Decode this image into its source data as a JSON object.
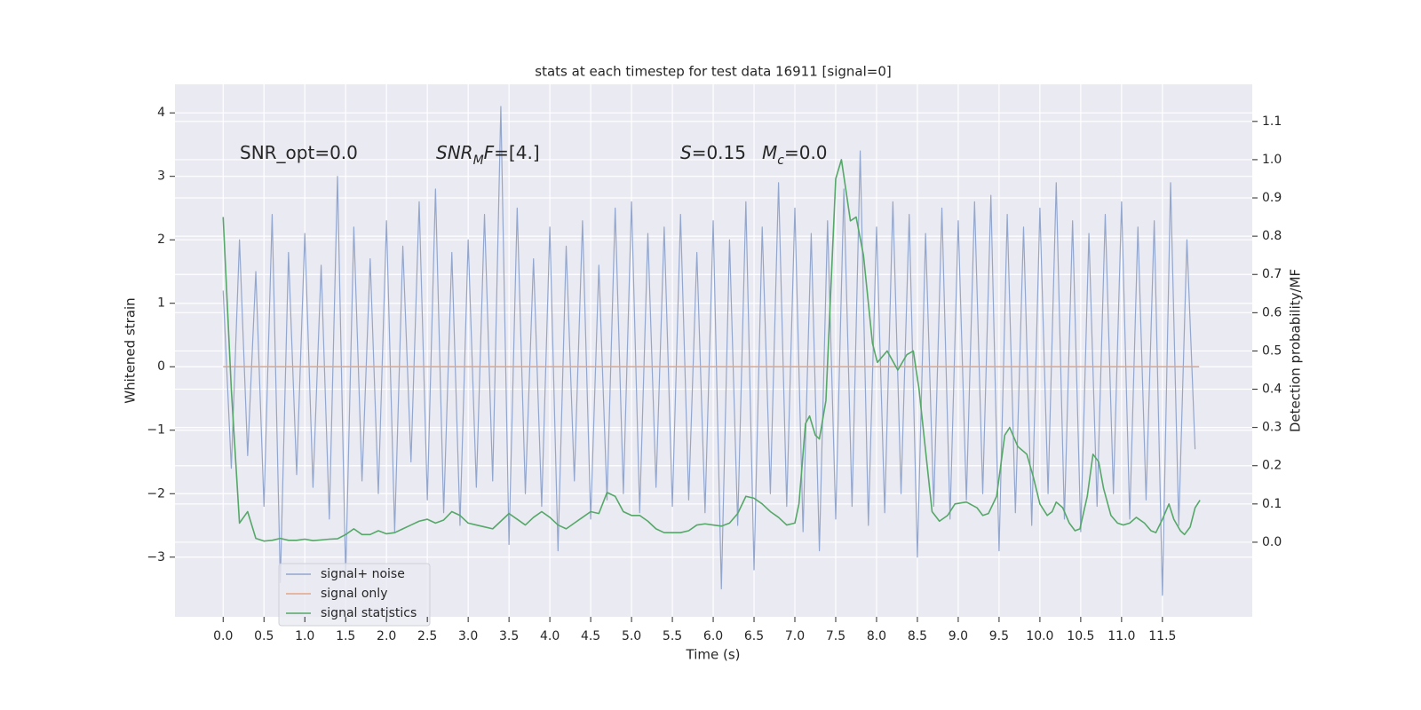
{
  "chart_data": {
    "type": "line",
    "title": "stats at each timestep for test data 16911 [signal=0]",
    "xlabel": "Time (s)",
    "ylabel": "Whitened strain",
    "y2label": "Detection probability/MF",
    "xlim": [
      -0.59,
      12.6
    ],
    "ylim": [
      -3.94,
      4.45
    ],
    "y2lim": [
      -0.195,
      1.197
    ],
    "xticks": [
      {
        "value": 0,
        "label": "0.0"
      },
      0.5,
      {
        "value": 1,
        "label": "1.0"
      },
      1.5,
      {
        "value": 2,
        "label": "2.0"
      },
      2.5,
      {
        "value": 3,
        "label": "3.0"
      },
      3.5,
      {
        "value": 4,
        "label": "4.0"
      },
      4.5,
      {
        "value": 5,
        "label": "5.0"
      },
      5.5,
      {
        "value": 6,
        "label": "6.0"
      },
      6.5,
      {
        "value": 7,
        "label": "7.0"
      },
      7.5,
      {
        "value": 8,
        "label": "8.0"
      },
      8.5,
      {
        "value": 9,
        "label": "9.0"
      },
      9.5,
      {
        "value": 10,
        "label": "10.0"
      },
      10.5,
      {
        "value": 11,
        "label": "11.0"
      },
      11.5
    ],
    "yticks": [
      {
        "value": -3,
        "label": "−3"
      },
      {
        "value": -2,
        "label": "−2"
      },
      {
        "value": -1,
        "label": "−1"
      },
      0,
      1,
      2,
      3,
      4
    ],
    "y2ticks": [
      {
        "value": 0,
        "label": "0.0"
      },
      0.1,
      0.2,
      0.3,
      0.4,
      0.5,
      0.6,
      0.7,
      0.8,
      0.9,
      {
        "value": 1,
        "label": "1.0"
      },
      1.1
    ],
    "grid": true,
    "legend": "lower left",
    "annotations": [
      {
        "segments": [
          {
            "text": "SNR_opt=0.0"
          }
        ]
      },
      {
        "segments": [
          {
            "text": "SNR",
            "italic": true
          },
          {
            "text": "M",
            "italic": true,
            "sub": true
          },
          {
            "text": "F",
            "italic": true
          },
          {
            "text": "=[4.]"
          }
        ]
      },
      {
        "segments": [
          {
            "text": "S",
            "italic": true
          },
          {
            "text": "=0.15"
          }
        ]
      },
      {
        "segments": [
          {
            "text": "M",
            "italic": true
          },
          {
            "text": "c",
            "italic": true,
            "sub": true
          },
          {
            "text": "=0.0"
          }
        ]
      }
    ],
    "series": [
      {
        "name": "signal+ noise",
        "color": "#93a6cd",
        "axis": "y",
        "x": [
          0.0,
          0.1,
          0.2,
          0.3,
          0.4,
          0.5,
          0.6,
          0.7,
          0.8,
          0.9,
          1.0,
          1.1,
          1.2,
          1.3,
          1.4,
          1.5,
          1.6,
          1.7,
          1.8,
          1.9,
          2.0,
          2.1,
          2.2,
          2.3,
          2.4,
          2.5,
          2.6,
          2.7,
          2.8,
          2.9,
          3.0,
          3.1,
          3.2,
          3.3,
          3.4,
          3.5,
          3.6,
          3.7,
          3.8,
          3.9,
          4.0,
          4.1,
          4.2,
          4.3,
          4.4,
          4.5,
          4.6,
          4.7,
          4.8,
          4.9,
          5.0,
          5.1,
          5.2,
          5.3,
          5.4,
          5.5,
          5.6,
          5.7,
          5.8,
          5.9,
          6.0,
          6.1,
          6.2,
          6.3,
          6.4,
          6.5,
          6.6,
          6.7,
          6.8,
          6.9,
          7.0,
          7.1,
          7.2,
          7.3,
          7.4,
          7.5,
          7.6,
          7.7,
          7.8,
          7.9,
          8.0,
          8.1,
          8.2,
          8.3,
          8.4,
          8.5,
          8.6,
          8.7,
          8.8,
          8.9,
          9.0,
          9.1,
          9.2,
          9.3,
          9.4,
          9.5,
          9.6,
          9.7,
          9.8,
          9.9,
          10.0,
          10.1,
          10.2,
          10.3,
          10.4,
          10.5,
          10.6,
          10.7,
          10.8,
          10.9,
          11.0,
          11.1,
          11.2,
          11.3,
          11.4,
          11.5,
          11.6,
          11.7,
          11.8,
          11.9
        ],
        "values": [
          1.2,
          -1.6,
          2.0,
          -1.4,
          1.5,
          -2.2,
          2.4,
          -3.4,
          1.8,
          -1.7,
          2.1,
          -1.9,
          1.6,
          -2.4,
          3.0,
          -3.3,
          2.2,
          -1.8,
          1.7,
          -2.0,
          2.3,
          -2.6,
          1.9,
          -1.5,
          2.6,
          -2.1,
          2.8,
          -2.3,
          1.8,
          -2.5,
          2.0,
          -1.9,
          2.4,
          -1.8,
          4.1,
          -2.8,
          2.5,
          -2.0,
          1.7,
          -2.2,
          2.2,
          -2.9,
          1.9,
          -1.8,
          2.3,
          -2.4,
          1.6,
          -2.1,
          2.5,
          -2.0,
          2.6,
          -2.3,
          2.1,
          -1.9,
          2.2,
          -2.2,
          2.4,
          -2.1,
          1.8,
          -2.3,
          2.3,
          -3.5,
          2.0,
          -2.5,
          2.6,
          -3.2,
          2.2,
          -2.0,
          2.9,
          -2.2,
          2.5,
          -2.6,
          2.1,
          -2.9,
          2.3,
          -2.4,
          2.8,
          -2.2,
          3.4,
          -2.5,
          2.2,
          -2.3,
          2.6,
          -2.0,
          2.4,
          -3.0,
          2.1,
          -2.2,
          2.5,
          -2.4,
          2.3,
          -2.1,
          2.6,
          -2.0,
          2.7,
          -2.9,
          2.4,
          -2.3,
          2.2,
          -2.5,
          2.5,
          -2.0,
          2.9,
          -2.4,
          2.3,
          -2.6,
          2.1,
          -2.2,
          2.4,
          -2.0,
          2.6,
          -2.4,
          2.2,
          -2.1,
          2.3,
          -3.6,
          2.9,
          -2.5,
          2.0,
          -1.3
        ]
      },
      {
        "name": "signal only",
        "color": "#e3a487",
        "axis": "y",
        "x": [
          0.0,
          11.95
        ],
        "values": [
          0,
          0
        ]
      },
      {
        "name": "signal statistics",
        "color": "#55a868",
        "axis": "y2",
        "x": [
          0.0,
          0.1,
          0.2,
          0.3,
          0.4,
          0.5,
          0.6,
          0.7,
          0.8,
          0.9,
          1.0,
          1.1,
          1.2,
          1.3,
          1.4,
          1.5,
          1.6,
          1.7,
          1.8,
          1.9,
          2.0,
          2.1,
          2.2,
          2.3,
          2.4,
          2.5,
          2.6,
          2.7,
          2.8,
          2.9,
          3.0,
          3.1,
          3.2,
          3.3,
          3.4,
          3.5,
          3.6,
          3.7,
          3.8,
          3.9,
          4.0,
          4.1,
          4.2,
          4.3,
          4.4,
          4.5,
          4.6,
          4.7,
          4.8,
          4.9,
          5.0,
          5.1,
          5.2,
          5.3,
          5.4,
          5.5,
          5.6,
          5.7,
          5.8,
          5.9,
          6.0,
          6.1,
          6.2,
          6.3,
          6.4,
          6.5,
          6.6,
          6.7,
          6.8,
          6.9,
          7.0,
          7.05,
          7.13,
          7.18,
          7.25,
          7.3,
          7.38,
          7.5,
          7.57,
          7.68,
          7.75,
          7.84,
          7.95,
          8.01,
          8.13,
          8.26,
          8.37,
          8.45,
          8.52,
          8.62,
          8.68,
          8.77,
          8.87,
          8.96,
          9.1,
          9.23,
          9.3,
          9.37,
          9.47,
          9.57,
          9.63,
          9.73,
          9.84,
          9.92,
          10.0,
          10.09,
          10.15,
          10.2,
          10.28,
          10.36,
          10.43,
          10.49,
          10.58,
          10.65,
          10.72,
          10.78,
          10.87,
          10.95,
          11.02,
          11.1,
          11.18,
          11.28,
          11.36,
          11.42,
          11.5,
          11.58,
          11.64,
          11.72,
          11.77,
          11.84,
          11.9,
          11.96
        ],
        "values": [
          0.85,
          0.4,
          0.05,
          0.08,
          0.01,
          0.003,
          0.005,
          0.01,
          0.005,
          0.005,
          0.008,
          0.004,
          0.006,
          0.008,
          0.009,
          0.02,
          0.035,
          0.02,
          0.02,
          0.03,
          0.022,
          0.025,
          0.035,
          0.045,
          0.055,
          0.06,
          0.05,
          0.058,
          0.08,
          0.07,
          0.05,
          0.045,
          0.04,
          0.035,
          0.055,
          0.075,
          0.06,
          0.045,
          0.065,
          0.08,
          0.065,
          0.045,
          0.035,
          0.05,
          0.065,
          0.08,
          0.075,
          0.13,
          0.12,
          0.08,
          0.07,
          0.07,
          0.055,
          0.035,
          0.025,
          0.025,
          0.025,
          0.03,
          0.045,
          0.048,
          0.045,
          0.042,
          0.05,
          0.075,
          0.12,
          0.115,
          0.1,
          0.08,
          0.065,
          0.045,
          0.05,
          0.1,
          0.31,
          0.33,
          0.28,
          0.27,
          0.37,
          0.95,
          1.0,
          0.84,
          0.85,
          0.75,
          0.52,
          0.47,
          0.5,
          0.45,
          0.49,
          0.5,
          0.4,
          0.2,
          0.08,
          0.055,
          0.07,
          0.1,
          0.105,
          0.09,
          0.07,
          0.075,
          0.12,
          0.28,
          0.3,
          0.25,
          0.23,
          0.17,
          0.1,
          0.07,
          0.08,
          0.105,
          0.09,
          0.05,
          0.03,
          0.035,
          0.12,
          0.23,
          0.21,
          0.14,
          0.07,
          0.05,
          0.045,
          0.05,
          0.065,
          0.05,
          0.03,
          0.025,
          0.06,
          0.1,
          0.06,
          0.03,
          0.02,
          0.04,
          0.09,
          0.11
        ]
      }
    ]
  }
}
